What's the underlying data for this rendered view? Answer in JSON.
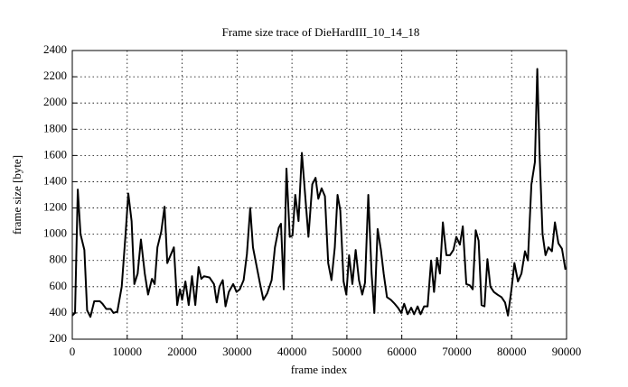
{
  "chart_data": {
    "type": "line",
    "title": "Frame size trace of DieHardIII_10_14_18",
    "x_label": "frame index",
    "y_label": "frame size [byte]",
    "color": "#000000",
    "grid": true,
    "x": [
      0,
      500,
      1000,
      1500,
      2200,
      2700,
      3300,
      4000,
      5000,
      5500,
      6200,
      7000,
      7500,
      8200,
      9000,
      9700,
      10200,
      10800,
      11300,
      11900,
      12500,
      13200,
      13800,
      14500,
      15000,
      15500,
      16200,
      16800,
      17300,
      17900,
      18500,
      19100,
      19600,
      20000,
      20600,
      21200,
      21800,
      22400,
      23000,
      23500,
      24000,
      25000,
      25800,
      26300,
      26800,
      27400,
      27900,
      28500,
      29300,
      29900,
      30500,
      31200,
      31800,
      32400,
      32900,
      33500,
      34200,
      34800,
      35500,
      36300,
      36900,
      37600,
      38000,
      38500,
      39000,
      39600,
      40100,
      40600,
      41200,
      41800,
      42400,
      43000,
      43700,
      44300,
      44800,
      45400,
      46000,
      46600,
      47200,
      47800,
      48300,
      48800,
      49400,
      49900,
      50400,
      51000,
      51600,
      52200,
      52800,
      53300,
      53900,
      54500,
      55000,
      55600,
      56200,
      56700,
      57300,
      58000,
      58700,
      59300,
      59900,
      60430,
      61070,
      61710,
      62240,
      62880,
      63420,
      64060,
      64700,
      65340,
      65870,
      66410,
      66940,
      67480,
      68120,
      68760,
      69400,
      69930,
      70570,
      71110,
      71750,
      72390,
      72920,
      73460,
      73990,
      74520,
      75060,
      75590,
      76130,
      76770,
      77410,
      78160,
      78800,
      79330,
      79970,
      80510,
      81150,
      81790,
      82430,
      82960,
      83600,
      84240,
      84670,
      85100,
      85630,
      86170,
      86700,
      87340,
      87880,
      88520,
      89160,
      89800
    ],
    "values": [
      380,
      400,
      1340,
      1000,
      880,
      420,
      370,
      490,
      490,
      470,
      430,
      430,
      400,
      410,
      600,
      1000,
      1310,
      1100,
      620,
      700,
      960,
      700,
      540,
      660,
      620,
      900,
      1020,
      1210,
      780,
      840,
      900,
      460,
      580,
      500,
      640,
      460,
      680,
      460,
      750,
      660,
      680,
      670,
      620,
      480,
      600,
      650,
      450,
      560,
      620,
      560,
      580,
      650,
      850,
      1200,
      900,
      770,
      620,
      500,
      550,
      650,
      900,
      1050,
      1080,
      580,
      1500,
      980,
      990,
      1300,
      1100,
      1620,
      1300,
      980,
      1380,
      1430,
      1270,
      1350,
      1290,
      780,
      650,
      900,
      1300,
      1180,
      640,
      540,
      840,
      620,
      880,
      650,
      540,
      630,
      1300,
      700,
      400,
      1040,
      880,
      700,
      520,
      500,
      470,
      440,
      400,
      470,
      390,
      440,
      390,
      450,
      390,
      450,
      450,
      800,
      560,
      820,
      700,
      1090,
      840,
      840,
      880,
      980,
      920,
      1060,
      620,
      610,
      580,
      1030,
      950,
      460,
      450,
      810,
      600,
      560,
      540,
      520,
      480,
      380,
      580,
      780,
      640,
      700,
      870,
      800,
      1380,
      1550,
      2260,
      1600,
      1000,
      840,
      900,
      870,
      1090,
      930,
      890,
      730
    ],
    "xlim": [
      0,
      90000
    ],
    "xticks": [
      0,
      10000,
      20000,
      30000,
      40000,
      50000,
      60000,
      70000,
      80000,
      90000
    ],
    "ylim": [
      200,
      2400
    ],
    "yticks": [
      200,
      400,
      600,
      800,
      1000,
      1200,
      1400,
      1600,
      1800,
      2000,
      2200,
      2400
    ]
  }
}
